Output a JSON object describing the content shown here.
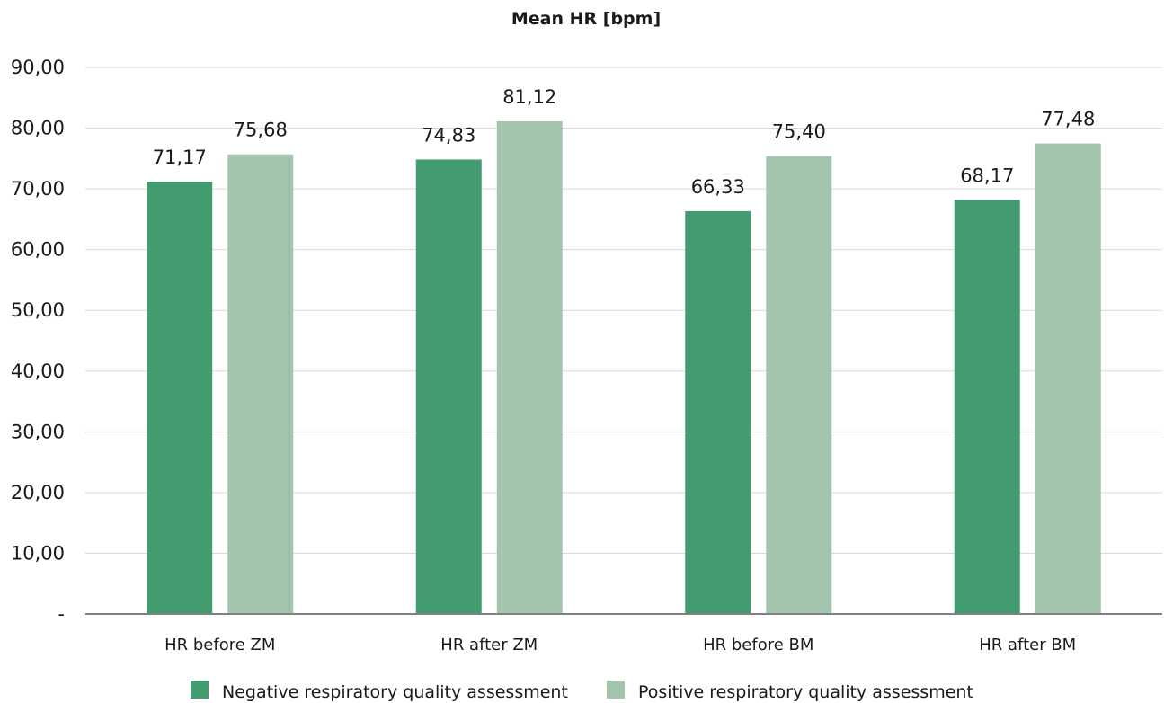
{
  "chart_data": {
    "type": "bar",
    "title": "Mean HR [bpm]",
    "xlabel": "",
    "ylabel": "",
    "ylim": [
      0,
      90
    ],
    "y_ticks": [
      "-",
      "10,00",
      "20,00",
      "30,00",
      "40,00",
      "50,00",
      "60,00",
      "70,00",
      "80,00",
      "90,00"
    ],
    "categories": [
      "HR before ZM",
      "HR after ZM",
      "HR before BM",
      "HR after BM"
    ],
    "series": [
      {
        "name": "Negative respiratory quality assessment",
        "values": [
          71.17,
          74.83,
          66.33,
          68.17
        ],
        "labels": [
          "71,17",
          "74,83",
          "66,33",
          "68,17"
        ],
        "color": "#439c6f"
      },
      {
        "name": "Positive respiratory quality assessment",
        "values": [
          75.68,
          81.12,
          75.4,
          77.48
        ],
        "labels": [
          "75,68",
          "81,12",
          "75,40",
          "77,48"
        ],
        "color": "#a3c5ad"
      }
    ],
    "grid": true,
    "legend_position": "bottom",
    "gridline_color": "#d9d9d9",
    "axis_color": "#808080"
  }
}
